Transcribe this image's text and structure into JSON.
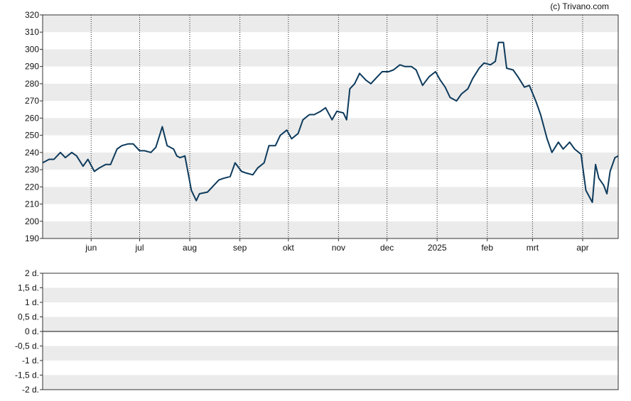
{
  "credit": "(c) Trivano.com",
  "chart_data": [
    {
      "type": "line",
      "title": "",
      "xlabel": "",
      "ylabel": "",
      "ylim": [
        190,
        320
      ],
      "yticks": [
        190,
        200,
        210,
        220,
        230,
        240,
        250,
        260,
        270,
        280,
        290,
        300,
        310,
        320
      ],
      "grid": "alternating horizontal bands, dotted vertical month lines",
      "xlim": [
        "2024-05-02",
        "2025-04-23"
      ],
      "xticks": [
        {
          "label": "jun",
          "date": "2024-06-01"
        },
        {
          "label": "jul",
          "date": "2024-07-01"
        },
        {
          "label": "aug",
          "date": "2024-08-01"
        },
        {
          "label": "sep",
          "date": "2024-09-01"
        },
        {
          "label": "okt",
          "date": "2024-10-01"
        },
        {
          "label": "nov",
          "date": "2024-11-01"
        },
        {
          "label": "dec",
          "date": "2024-12-01"
        },
        {
          "label": "2025",
          "date": "2025-01-01"
        },
        {
          "label": "feb",
          "date": "2025-02-01"
        },
        {
          "label": "mrt",
          "date": "2025-03-01"
        },
        {
          "label": "apr",
          "date": "2025-04-01"
        }
      ],
      "line_color": "#0d3a5c",
      "series": [
        {
          "points": [
            [
              "2024-05-02",
              234
            ],
            [
              "2024-05-06",
              236
            ],
            [
              "2024-05-09",
              236
            ],
            [
              "2024-05-13",
              240
            ],
            [
              "2024-05-16",
              237
            ],
            [
              "2024-05-20",
              240
            ],
            [
              "2024-05-23",
              238
            ],
            [
              "2024-05-27",
              232
            ],
            [
              "2024-05-30",
              236
            ],
            [
              "2024-06-03",
              229
            ],
            [
              "2024-06-06",
              231
            ],
            [
              "2024-06-10",
              233
            ],
            [
              "2024-06-13",
              233
            ],
            [
              "2024-06-17",
              242
            ],
            [
              "2024-06-20",
              244
            ],
            [
              "2024-06-24",
              245
            ],
            [
              "2024-06-27",
              245
            ],
            [
              "2024-07-01",
              241
            ],
            [
              "2024-07-04",
              241
            ],
            [
              "2024-07-08",
              240
            ],
            [
              "2024-07-11",
              243
            ],
            [
              "2024-07-15",
              255
            ],
            [
              "2024-07-18",
              244
            ],
            [
              "2024-07-22",
              242
            ],
            [
              "2024-07-24",
              238
            ],
            [
              "2024-07-26",
              237
            ],
            [
              "2024-07-29",
              238
            ],
            [
              "2024-07-31",
              228
            ],
            [
              "2024-08-02",
              218
            ],
            [
              "2024-08-05",
              212
            ],
            [
              "2024-08-07",
              216
            ],
            [
              "2024-08-12",
              217
            ],
            [
              "2024-08-15",
              220
            ],
            [
              "2024-08-19",
              224
            ],
            [
              "2024-08-22",
              225
            ],
            [
              "2024-08-26",
              226
            ],
            [
              "2024-08-29",
              234
            ],
            [
              "2024-09-02",
              229
            ],
            [
              "2024-09-05",
              228
            ],
            [
              "2024-09-09",
              227
            ],
            [
              "2024-09-12",
              231
            ],
            [
              "2024-09-16",
              234
            ],
            [
              "2024-09-19",
              244
            ],
            [
              "2024-09-23",
              244
            ],
            [
              "2024-09-26",
              250
            ],
            [
              "2024-09-30",
              253
            ],
            [
              "2024-10-03",
              248
            ],
            [
              "2024-10-07",
              251
            ],
            [
              "2024-10-10",
              259
            ],
            [
              "2024-10-14",
              262
            ],
            [
              "2024-10-17",
              262
            ],
            [
              "2024-10-21",
              264
            ],
            [
              "2024-10-24",
              266
            ],
            [
              "2024-10-28",
              259
            ],
            [
              "2024-10-31",
              264
            ],
            [
              "2024-11-04",
              263
            ],
            [
              "2024-11-06",
              259
            ],
            [
              "2024-11-08",
              277
            ],
            [
              "2024-11-11",
              280
            ],
            [
              "2024-11-14",
              286
            ],
            [
              "2024-11-18",
              282
            ],
            [
              "2024-11-21",
              280
            ],
            [
              "2024-11-25",
              284
            ],
            [
              "2024-11-28",
              287
            ],
            [
              "2024-12-02",
              287
            ],
            [
              "2024-12-05",
              288
            ],
            [
              "2024-12-09",
              291
            ],
            [
              "2024-12-12",
              290
            ],
            [
              "2024-12-16",
              290
            ],
            [
              "2024-12-19",
              288
            ],
            [
              "2024-12-23",
              279
            ],
            [
              "2024-12-27",
              284
            ],
            [
              "2024-12-31",
              287
            ],
            [
              "2025-01-03",
              282
            ],
            [
              "2025-01-06",
              278
            ],
            [
              "2025-01-09",
              272
            ],
            [
              "2025-01-13",
              270
            ],
            [
              "2025-01-16",
              274
            ],
            [
              "2025-01-20",
              277
            ],
            [
              "2025-01-23",
              283
            ],
            [
              "2025-01-27",
              289
            ],
            [
              "2025-01-30",
              292
            ],
            [
              "2025-02-03",
              291
            ],
            [
              "2025-02-06",
              293
            ],
            [
              "2025-02-08",
              304
            ],
            [
              "2025-02-11",
              304
            ],
            [
              "2025-02-13",
              289
            ],
            [
              "2025-02-17",
              288
            ],
            [
              "2025-02-20",
              284
            ],
            [
              "2025-02-24",
              278
            ],
            [
              "2025-02-27",
              279
            ],
            [
              "2025-03-03",
              270
            ],
            [
              "2025-03-06",
              262
            ],
            [
              "2025-03-10",
              248
            ],
            [
              "2025-03-13",
              240
            ],
            [
              "2025-03-17",
              246
            ],
            [
              "2025-03-20",
              242
            ],
            [
              "2025-03-24",
              246
            ],
            [
              "2025-03-27",
              242
            ],
            [
              "2025-03-31",
              239
            ],
            [
              "2025-04-03",
              218
            ],
            [
              "2025-04-07",
              211
            ],
            [
              "2025-04-09",
              233
            ],
            [
              "2025-04-11",
              225
            ],
            [
              "2025-04-14",
              221
            ],
            [
              "2025-04-16",
              216
            ],
            [
              "2025-04-18",
              229
            ],
            [
              "2025-04-21",
              237
            ],
            [
              "2025-04-23",
              238
            ]
          ]
        }
      ]
    },
    {
      "type": "line",
      "title": "",
      "xlabel": "",
      "ylabel": "",
      "ylim": [
        -2,
        2
      ],
      "yticks": [
        {
          "value": 2,
          "label": "2 d."
        },
        {
          "value": 1.5,
          "label": "1,5 d."
        },
        {
          "value": 1,
          "label": "1 d."
        },
        {
          "value": 0.5,
          "label": "0,5 d."
        },
        {
          "value": 0,
          "label": "0 d."
        },
        {
          "value": -0.5,
          "label": "-0,5 d."
        },
        {
          "value": -1,
          "label": "-1 d."
        },
        {
          "value": -1.5,
          "label": "-1,5 d."
        },
        {
          "value": -2,
          "label": "-2 d."
        }
      ],
      "grid": "alternating horizontal bands",
      "baseline": 0,
      "series": []
    }
  ]
}
